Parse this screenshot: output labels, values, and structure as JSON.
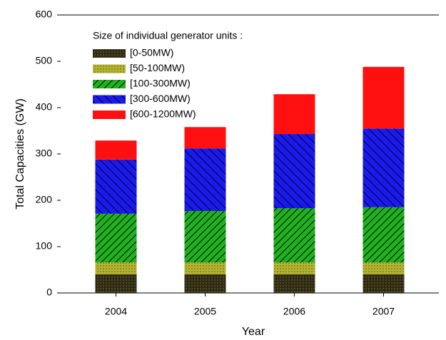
{
  "chart_data": {
    "type": "stacked_bar",
    "x_label": "Year",
    "y_label": "Total Capacities (GW)",
    "legend_title": "Size of individual generator units :",
    "categories": [
      "2004",
      "2005",
      "2006",
      "2007"
    ],
    "series": [
      {
        "name": "[0-50MW)",
        "color": "#2e2a10",
        "values": [
          40,
          40,
          40,
          40
        ]
      },
      {
        "name": "[50-100MW)",
        "color": "#b5b52a",
        "values": [
          26,
          26,
          26,
          26
        ]
      },
      {
        "name": "[100-300MW)",
        "color": "#22b022",
        "values": [
          105,
          111,
          117,
          119
        ]
      },
      {
        "name": "[300-600MW)",
        "color": "#1a1aee",
        "values": [
          117,
          135,
          160,
          170
        ]
      },
      {
        "name": "[600-1200MW)",
        "color": "#ff1010",
        "values": [
          41,
          46,
          86,
          133
        ]
      }
    ],
    "ylim": [
      0,
      600
    ],
    "yticks": [
      0,
      100,
      200,
      300,
      400,
      500,
      600
    ]
  }
}
